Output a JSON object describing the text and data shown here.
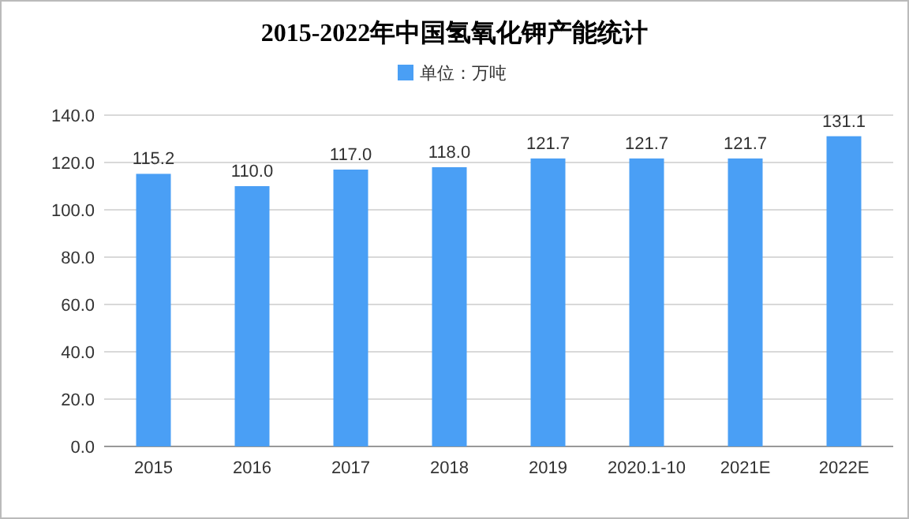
{
  "chart_data": {
    "type": "bar",
    "title": "2015-2022年中国氢氧化钾产能统计",
    "legend": "top",
    "grid": "y",
    "categories": [
      "2015",
      "2016",
      "2017",
      "2018",
      "2019",
      "2020.1-10",
      "2021E",
      "2022E"
    ],
    "series": [
      {
        "name": "单位：万吨",
        "color": "#4a9ff5",
        "values": [
          115.2,
          110.0,
          117.0,
          118.0,
          121.7,
          121.7,
          121.7,
          131.1
        ],
        "value_labels": [
          "115.2",
          "110.0",
          "117.0",
          "118.0",
          "121.7",
          "121.7",
          "121.7",
          "131.1"
        ]
      }
    ],
    "ylim": [
      0,
      140
    ],
    "yticks": [
      {
        "value": 0,
        "label": "0.0"
      },
      {
        "value": 20,
        "label": "20.0"
      },
      {
        "value": 40,
        "label": "40.0"
      },
      {
        "value": 60,
        "label": "60.0"
      },
      {
        "value": 80,
        "label": "80.0"
      },
      {
        "value": 100,
        "label": "100.0"
      },
      {
        "value": 120,
        "label": "120.0"
      },
      {
        "value": 140,
        "label": "140.0"
      }
    ]
  }
}
